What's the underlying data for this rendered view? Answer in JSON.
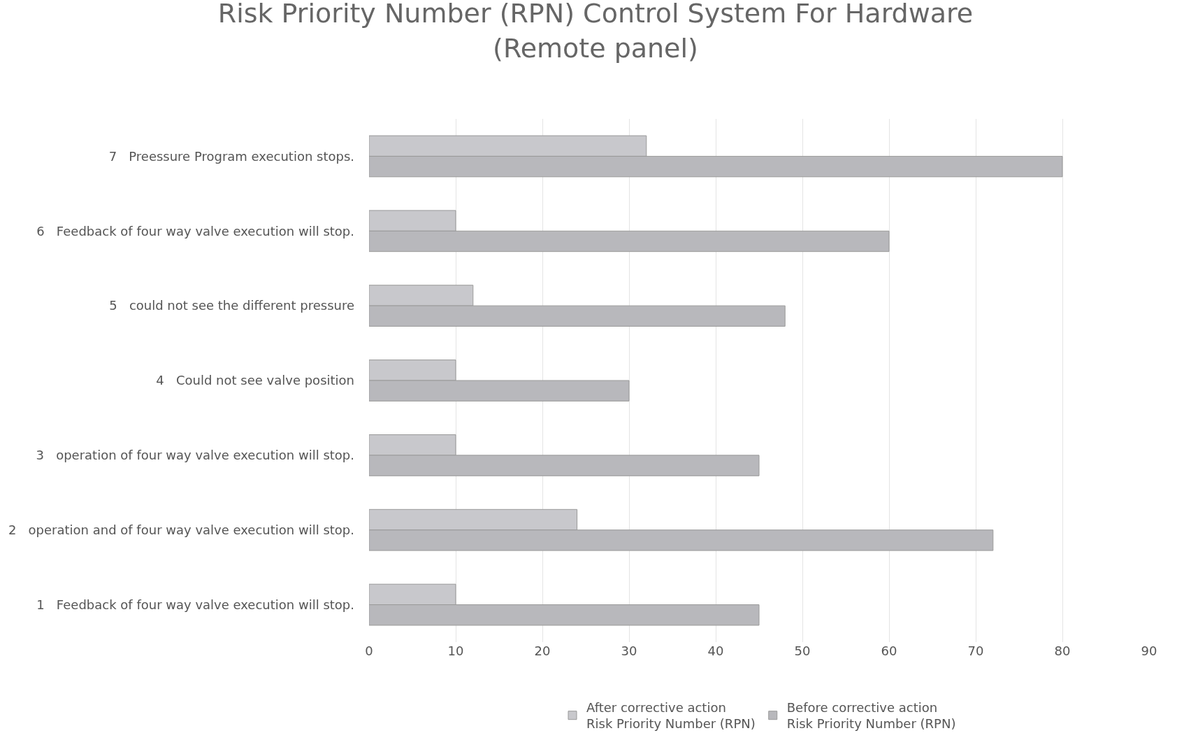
{
  "chart_data": {
    "type": "bar",
    "orientation": "horizontal",
    "title": "Risk Priority Number (RPN) Control System For Hardware\n(Remote panel)",
    "categories": [
      "7   Preessure Program execution stops.",
      "6   Feedback of four way valve execution will stop.",
      "5   could not see the different pressure",
      "4   Could not see valve position",
      "3   operation of four way valve execution will stop.",
      "2   operation and of four way valve execution will stop.",
      "1   Feedback of four way valve execution will stop."
    ],
    "series": [
      {
        "name": "After corrective action\nRisk Priority Number (RPN)",
        "color": "#c8c8cc",
        "values": [
          32,
          10,
          12,
          10,
          10,
          24,
          10
        ]
      },
      {
        "name": "Before corrective action\nRisk Priority Number (RPN)",
        "color": "#b8b8bc",
        "values": [
          80,
          60,
          48,
          30,
          45,
          72,
          45
        ]
      }
    ],
    "xlim": [
      0,
      90
    ],
    "xticks": [
      0,
      10,
      20,
      30,
      40,
      50,
      60,
      70,
      80,
      90
    ],
    "grid": "x",
    "legend": "bottom"
  }
}
